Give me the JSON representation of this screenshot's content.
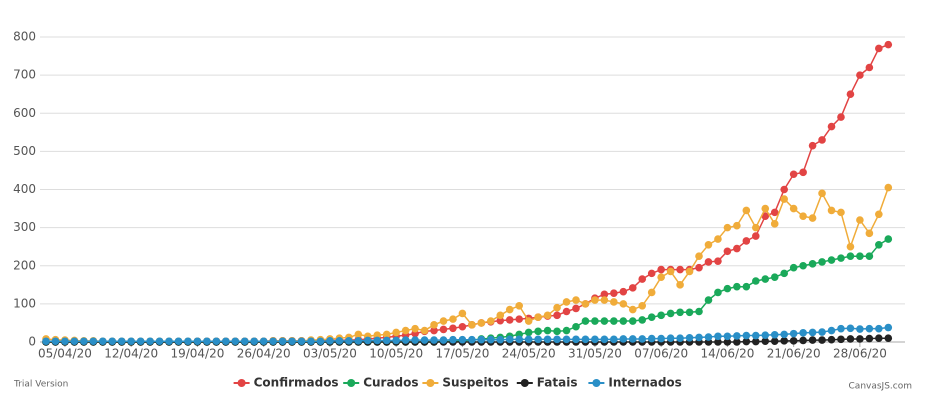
{
  "chart_data": {
    "type": "line",
    "x": [
      "03/04/20",
      "04/04/20",
      "05/04/20",
      "06/04/20",
      "07/04/20",
      "08/04/20",
      "09/04/20",
      "10/04/20",
      "11/04/20",
      "12/04/20",
      "13/04/20",
      "14/04/20",
      "15/04/20",
      "16/04/20",
      "17/04/20",
      "18/04/20",
      "19/04/20",
      "20/04/20",
      "21/04/20",
      "22/04/20",
      "23/04/20",
      "24/04/20",
      "25/04/20",
      "26/04/20",
      "27/04/20",
      "28/04/20",
      "29/04/20",
      "30/04/20",
      "01/05/20",
      "02/05/20",
      "03/05/20",
      "04/05/20",
      "05/05/20",
      "06/05/20",
      "07/05/20",
      "08/05/20",
      "09/05/20",
      "10/05/20",
      "11/05/20",
      "12/05/20",
      "13/05/20",
      "14/05/20",
      "15/05/20",
      "16/05/20",
      "17/05/20",
      "18/05/20",
      "19/05/20",
      "20/05/20",
      "21/05/20",
      "22/05/20",
      "23/05/20",
      "24/05/20",
      "25/05/20",
      "26/05/20",
      "27/05/20",
      "28/05/20",
      "29/05/20",
      "30/05/20",
      "31/05/20",
      "01/06/20",
      "02/06/20",
      "03/06/20",
      "04/06/20",
      "05/06/20",
      "06/06/20",
      "07/06/20",
      "08/06/20",
      "09/06/20",
      "10/06/20",
      "11/06/20",
      "12/06/20",
      "13/06/20",
      "14/06/20",
      "15/06/20",
      "16/06/20",
      "17/06/20",
      "18/06/20",
      "19/06/20",
      "20/06/20",
      "21/06/20",
      "22/06/20",
      "23/06/20",
      "24/06/20",
      "25/06/20",
      "26/06/20",
      "27/06/20",
      "28/06/20",
      "29/06/20",
      "30/06/20",
      "01/07/20"
    ],
    "xticks": [
      "05/04/20",
      "12/04/20",
      "19/04/20",
      "26/04/20",
      "03/05/20",
      "10/05/20",
      "17/05/20",
      "24/05/20",
      "31/05/20",
      "07/06/20",
      "14/06/20",
      "21/06/20",
      "28/06/20"
    ],
    "ylim": [
      0,
      800
    ],
    "yticks": [
      0,
      100,
      200,
      300,
      400,
      500,
      600,
      700,
      800
    ],
    "grid": true,
    "legend": "bottom",
    "series": [
      {
        "name": "Confirmados",
        "color": "#e24444",
        "values": [
          1,
          1,
          1,
          1,
          1,
          1,
          1,
          1,
          1,
          1,
          1,
          1,
          1,
          1,
          1,
          1,
          2,
          2,
          2,
          2,
          2,
          2,
          2,
          2,
          3,
          3,
          3,
          3,
          3,
          4,
          4,
          5,
          5,
          6,
          8,
          10,
          12,
          15,
          18,
          22,
          28,
          30,
          33,
          36,
          40,
          45,
          50,
          53,
          56,
          58,
          60,
          62,
          65,
          68,
          70,
          80,
          88,
          100,
          115,
          125,
          128,
          132,
          142,
          165,
          180,
          190,
          190,
          190,
          190,
          195,
          210,
          212,
          238,
          245,
          265,
          278,
          330,
          340,
          400,
          440,
          445,
          515,
          530,
          565,
          590,
          650,
          700,
          720,
          770,
          780
        ]
      },
      {
        "name": "Curados",
        "color": "#1aa95a",
        "values": [
          0,
          0,
          0,
          0,
          0,
          0,
          0,
          0,
          0,
          0,
          0,
          0,
          0,
          0,
          0,
          0,
          0,
          0,
          0,
          0,
          0,
          0,
          0,
          0,
          0,
          0,
          0,
          0,
          0,
          0,
          0,
          0,
          0,
          0,
          0,
          0,
          0,
          0,
          0,
          0,
          0,
          0,
          1,
          2,
          3,
          5,
          8,
          10,
          12,
          15,
          20,
          25,
          28,
          30,
          28,
          30,
          40,
          55,
          55,
          55,
          55,
          55,
          55,
          58,
          65,
          70,
          75,
          78,
          78,
          80,
          110,
          130,
          140,
          145,
          145,
          160,
          165,
          170,
          180,
          195,
          200,
          205,
          210,
          215,
          220,
          225,
          225,
          225,
          255,
          270
        ]
      },
      {
        "name": "Suspeitos",
        "color": "#f0ac3a",
        "values": [
          8,
          6,
          5,
          4,
          3,
          3,
          2,
          2,
          2,
          2,
          2,
          2,
          2,
          2,
          2,
          2,
          2,
          2,
          2,
          2,
          2,
          2,
          2,
          2,
          3,
          3,
          3,
          3,
          5,
          6,
          8,
          10,
          12,
          20,
          15,
          18,
          20,
          25,
          30,
          35,
          30,
          45,
          55,
          60,
          75,
          45,
          50,
          55,
          70,
          85,
          95,
          55,
          65,
          70,
          90,
          105,
          110,
          100,
          110,
          110,
          105,
          100,
          85,
          95,
          130,
          170,
          185,
          150,
          185,
          225,
          255,
          270,
          300,
          305,
          345,
          300,
          350,
          310,
          375,
          350,
          330,
          325,
          390,
          345,
          340,
          250,
          320,
          285,
          335,
          405
        ]
      },
      {
        "name": "Fatais",
        "color": "#222222",
        "values": [
          0,
          0,
          0,
          0,
          0,
          0,
          0,
          0,
          0,
          0,
          0,
          0,
          0,
          0,
          0,
          0,
          0,
          0,
          0,
          0,
          0,
          0,
          0,
          0,
          0,
          0,
          0,
          0,
          0,
          0,
          0,
          0,
          0,
          0,
          0,
          0,
          0,
          0,
          0,
          0,
          0,
          0,
          0,
          0,
          0,
          0,
          0,
          0,
          0,
          0,
          0,
          0,
          0,
          0,
          0,
          0,
          0,
          0,
          0,
          0,
          0,
          0,
          0,
          0,
          0,
          0,
          0,
          0,
          0,
          0,
          0,
          0,
          0,
          0,
          1,
          1,
          2,
          2,
          3,
          3,
          4,
          5,
          5,
          6,
          7,
          8,
          8,
          9,
          10,
          10
        ]
      },
      {
        "name": "Internados",
        "color": "#2a8fc7",
        "values": [
          2,
          2,
          2,
          2,
          2,
          2,
          2,
          2,
          2,
          2,
          2,
          2,
          2,
          2,
          2,
          2,
          2,
          2,
          2,
          2,
          2,
          2,
          2,
          2,
          2,
          2,
          2,
          2,
          2,
          2,
          3,
          3,
          3,
          3,
          4,
          4,
          4,
          4,
          5,
          5,
          5,
          5,
          5,
          6,
          6,
          6,
          6,
          6,
          6,
          7,
          7,
          7,
          7,
          7,
          7,
          7,
          7,
          7,
          7,
          7,
          7,
          8,
          8,
          8,
          9,
          9,
          10,
          10,
          11,
          12,
          13,
          15,
          15,
          16,
          17,
          17,
          18,
          19,
          20,
          22,
          24,
          25,
          26,
          30,
          35,
          36,
          34,
          35,
          35,
          38
        ]
      }
    ],
    "watermark_left": "Trial Version",
    "watermark_right": "CanvasJS.com"
  }
}
